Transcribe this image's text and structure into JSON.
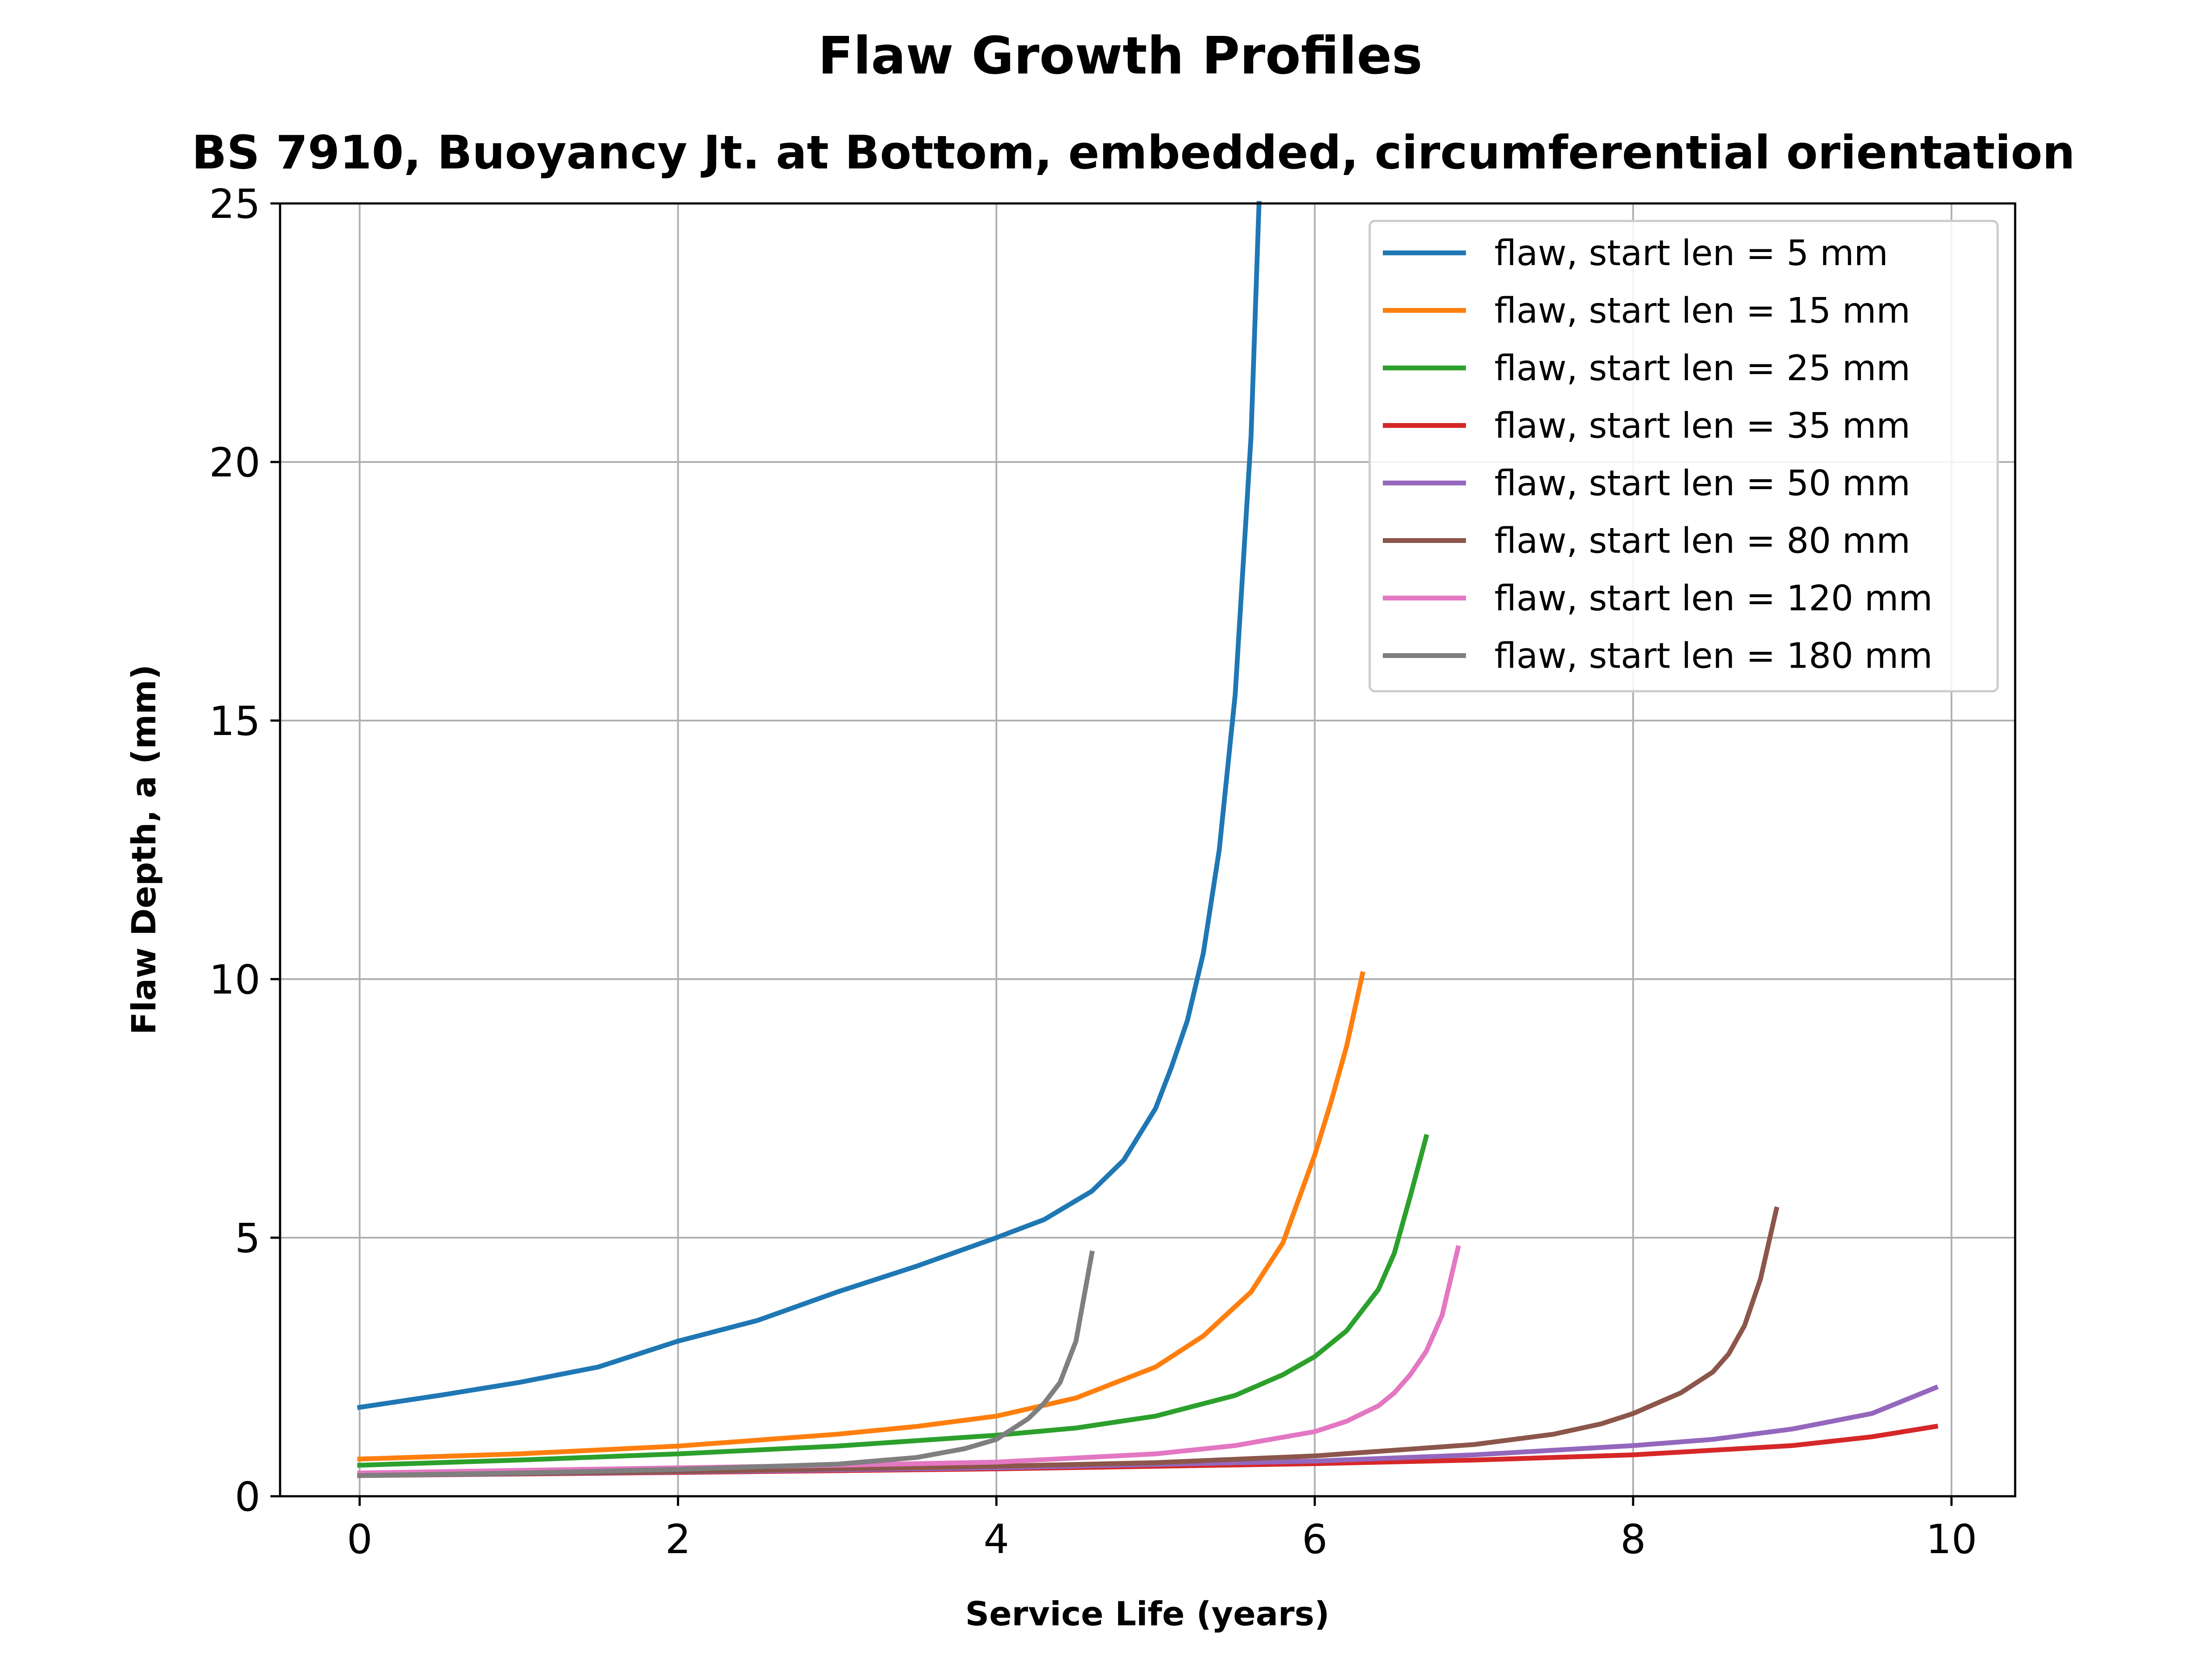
{
  "chart_data": {
    "type": "line",
    "title": "Flaw Growth Profiles",
    "subtitle": "BS 7910, Buoyancy Jt. at Bottom, embedded, circumferential orientation",
    "xlabel": "Service Life (years)",
    "ylabel": "Flaw Depth, a (mm)",
    "xlim": [
      -0.5,
      10.4
    ],
    "ylim": [
      0,
      25
    ],
    "xticks": [
      "0",
      "2",
      "4",
      "6",
      "8",
      "10"
    ],
    "yticks": [
      "0",
      "5",
      "10",
      "15",
      "20",
      "25"
    ],
    "grid": true,
    "legend_position": "top-right",
    "series": [
      {
        "name": "flaw, start len = 5 mm",
        "color": "#1f77b4",
        "points": [
          [
            0,
            1.72
          ],
          [
            0.5,
            1.95
          ],
          [
            1,
            2.2
          ],
          [
            1.5,
            2.5
          ],
          [
            2,
            3.0
          ],
          [
            2.5,
            3.4
          ],
          [
            3,
            3.95
          ],
          [
            3.5,
            4.45
          ],
          [
            4,
            5.0
          ],
          [
            4.3,
            5.35
          ],
          [
            4.6,
            5.9
          ],
          [
            4.8,
            6.5
          ],
          [
            5.0,
            7.5
          ],
          [
            5.1,
            8.3
          ],
          [
            5.2,
            9.2
          ],
          [
            5.3,
            10.5
          ],
          [
            5.4,
            12.5
          ],
          [
            5.5,
            15.5
          ],
          [
            5.6,
            20.5
          ],
          [
            5.65,
            25.0
          ]
        ]
      },
      {
        "name": "flaw, start len = 15 mm",
        "color": "#ff7f0e",
        "points": [
          [
            0,
            0.72
          ],
          [
            1,
            0.82
          ],
          [
            2,
            0.97
          ],
          [
            3,
            1.2
          ],
          [
            3.5,
            1.35
          ],
          [
            4,
            1.55
          ],
          [
            4.5,
            1.9
          ],
          [
            5,
            2.5
          ],
          [
            5.3,
            3.1
          ],
          [
            5.6,
            3.95
          ],
          [
            5.8,
            4.9
          ],
          [
            6.0,
            6.6
          ],
          [
            6.1,
            7.6
          ],
          [
            6.2,
            8.7
          ],
          [
            6.3,
            10.1
          ]
        ]
      },
      {
        "name": "flaw, start len = 25 mm",
        "color": "#2ca02c",
        "points": [
          [
            0,
            0.6
          ],
          [
            1,
            0.7
          ],
          [
            2,
            0.82
          ],
          [
            3,
            0.97
          ],
          [
            4,
            1.18
          ],
          [
            4.5,
            1.32
          ],
          [
            5,
            1.55
          ],
          [
            5.5,
            1.95
          ],
          [
            5.8,
            2.35
          ],
          [
            6.0,
            2.7
          ],
          [
            6.2,
            3.2
          ],
          [
            6.4,
            4.0
          ],
          [
            6.5,
            4.7
          ],
          [
            6.6,
            5.8
          ],
          [
            6.7,
            6.95
          ]
        ]
      },
      {
        "name": "flaw, start len = 35 mm",
        "color": "#d62728",
        "points": [
          [
            0,
            0.4
          ],
          [
            2,
            0.46
          ],
          [
            4,
            0.53
          ],
          [
            6,
            0.63
          ],
          [
            7,
            0.7
          ],
          [
            8,
            0.8
          ],
          [
            9,
            0.98
          ],
          [
            9.5,
            1.15
          ],
          [
            9.9,
            1.35
          ]
        ]
      },
      {
        "name": "flaw, start len = 50 mm",
        "color": "#9467bd",
        "points": [
          [
            0,
            0.4
          ],
          [
            2,
            0.47
          ],
          [
            4,
            0.55
          ],
          [
            6,
            0.68
          ],
          [
            7,
            0.8
          ],
          [
            8,
            0.98
          ],
          [
            8.5,
            1.1
          ],
          [
            9,
            1.3
          ],
          [
            9.5,
            1.6
          ],
          [
            9.9,
            2.1
          ]
        ]
      },
      {
        "name": "flaw, start len = 80 mm",
        "color": "#8c564b",
        "points": [
          [
            0,
            0.4
          ],
          [
            2,
            0.48
          ],
          [
            4,
            0.58
          ],
          [
            5,
            0.65
          ],
          [
            6,
            0.78
          ],
          [
            7,
            1.0
          ],
          [
            7.5,
            1.2
          ],
          [
            7.8,
            1.4
          ],
          [
            8,
            1.6
          ],
          [
            8.3,
            2.0
          ],
          [
            8.5,
            2.4
          ],
          [
            8.6,
            2.75
          ],
          [
            8.7,
            3.3
          ],
          [
            8.8,
            4.2
          ],
          [
            8.9,
            5.55
          ]
        ]
      },
      {
        "name": "flaw, start len = 120 mm",
        "color": "#e377c2",
        "points": [
          [
            0,
            0.45
          ],
          [
            1,
            0.5
          ],
          [
            2,
            0.55
          ],
          [
            3,
            0.6
          ],
          [
            4,
            0.66
          ],
          [
            5,
            0.82
          ],
          [
            5.5,
            0.98
          ],
          [
            6.0,
            1.25
          ],
          [
            6.2,
            1.45
          ],
          [
            6.4,
            1.75
          ],
          [
            6.5,
            2.0
          ],
          [
            6.6,
            2.35
          ],
          [
            6.7,
            2.8
          ],
          [
            6.8,
            3.5
          ],
          [
            6.9,
            4.8
          ]
        ]
      },
      {
        "name": "flaw, start len = 180 mm",
        "color": "#7f7f7f",
        "points": [
          [
            0,
            0.4
          ],
          [
            1,
            0.45
          ],
          [
            2,
            0.52
          ],
          [
            3,
            0.62
          ],
          [
            3.5,
            0.75
          ],
          [
            3.8,
            0.92
          ],
          [
            4.0,
            1.1
          ],
          [
            4.1,
            1.3
          ],
          [
            4.2,
            1.5
          ],
          [
            4.3,
            1.8
          ],
          [
            4.4,
            2.2
          ],
          [
            4.5,
            3.0
          ],
          [
            4.6,
            4.7
          ]
        ]
      }
    ]
  }
}
